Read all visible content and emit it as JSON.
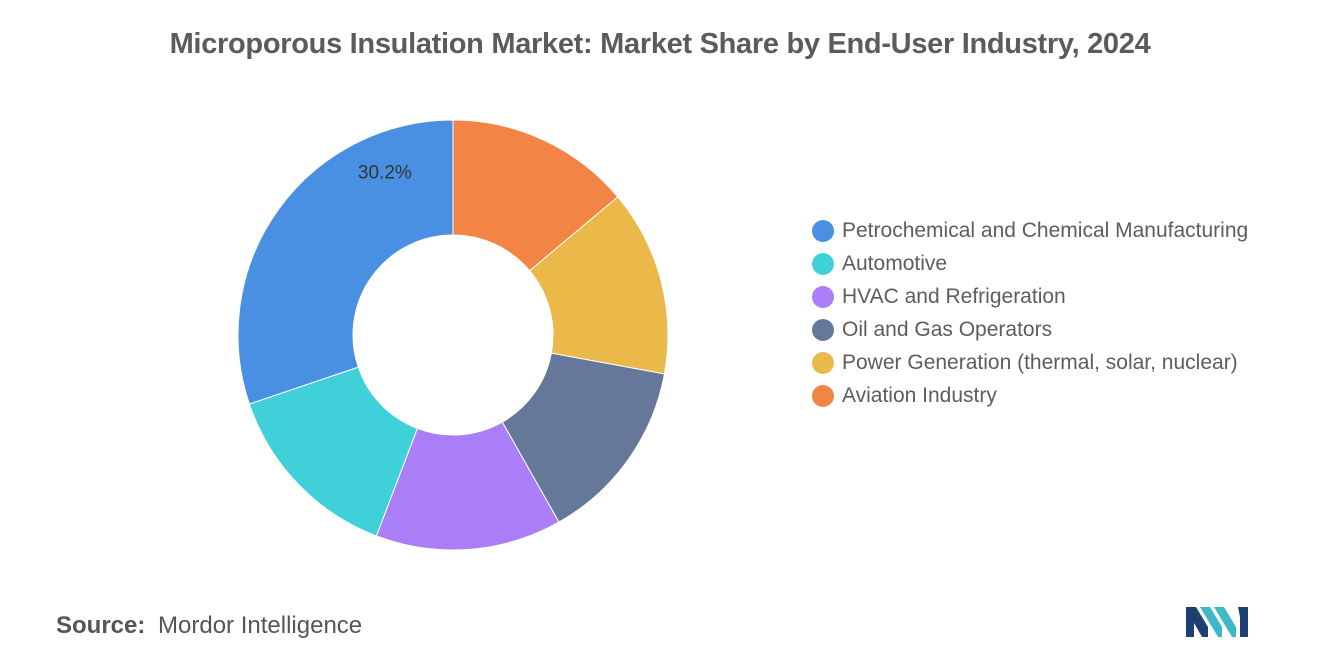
{
  "title": "Microporous Insulation Market: Market Share by End-User Industry, 2024",
  "chart_data": {
    "type": "pie",
    "style": "donut",
    "title": "Microporous Insulation Market: Market Share by End-User Industry, 2024",
    "categories": [
      "Petrochemical and Chemical Manufacturing",
      "Automotive",
      "HVAC and Refrigeration",
      "Oil and Gas Operators",
      "Power Generation (thermal, solar, nuclear)",
      "Aviation Industry"
    ],
    "values": [
      30.2,
      14.0,
      14.0,
      13.9,
      14.0,
      13.9
    ],
    "colors": [
      "#4a90e2",
      "#3fd0d9",
      "#a97ef7",
      "#65789a",
      "#ebb84a",
      "#f28545"
    ],
    "data_labels": [
      {
        "category": "Petrochemical and Chemical Manufacturing",
        "text": "30.2%"
      }
    ],
    "legend_position": "right"
  },
  "source": {
    "key": "Source:",
    "value": "Mordor Intelligence"
  },
  "logo": {
    "icon": "mordor-intelligence-logo",
    "colors": [
      "#1f3f73",
      "#3fb8c8"
    ]
  }
}
